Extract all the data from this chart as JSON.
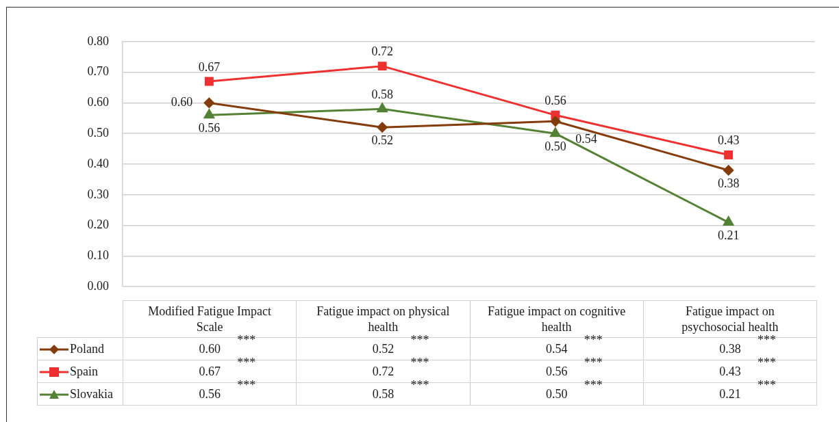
{
  "chart_data": {
    "type": "line",
    "categories": [
      "Modified Fatigue Impact Scale",
      "Fatigue impact on physical health",
      "Fatigue impact on cognitive health",
      "Fatigue impact on psychosocial health"
    ],
    "series": [
      {
        "name": "Poland",
        "color": "#843c0c",
        "marker": "diamond",
        "values": [
          0.6,
          0.52,
          0.54,
          0.38
        ],
        "value_labels": [
          "0.60",
          "0.52",
          "0.54",
          "0.38"
        ]
      },
      {
        "name": "Spain",
        "color": "#ee3030",
        "marker": "square",
        "values": [
          0.67,
          0.72,
          0.56,
          0.43
        ],
        "value_labels": [
          "0.67",
          "0.72",
          "0.56",
          "0.43"
        ]
      },
      {
        "name": "Slovakia",
        "color": "#548235",
        "marker": "triangle",
        "values": [
          0.56,
          0.58,
          0.5,
          0.21
        ],
        "value_labels": [
          "0.56",
          "0.58",
          "0.50",
          "0.21"
        ]
      }
    ],
    "ylim": [
      0,
      0.8
    ],
    "yticks": [
      {
        "value": 0,
        "label": "0.00"
      },
      {
        "value": 0.1,
        "label": "0.10"
      },
      {
        "value": 0.2,
        "label": "0.20"
      },
      {
        "value": 0.3,
        "label": "0.30"
      },
      {
        "value": 0.4,
        "label": "0.40"
      },
      {
        "value": 0.5,
        "label": "0.50"
      },
      {
        "value": 0.6,
        "label": "0.60"
      },
      {
        "value": 0.7,
        "label": "0.70"
      },
      {
        "value": 0.8,
        "label": "0.80"
      }
    ],
    "grid": "y",
    "legend": "bottom",
    "annotations": [
      "***",
      "***",
      "***",
      "***",
      "***",
      "***",
      "***",
      "***",
      "***",
      "***",
      "***",
      "***"
    ]
  }
}
